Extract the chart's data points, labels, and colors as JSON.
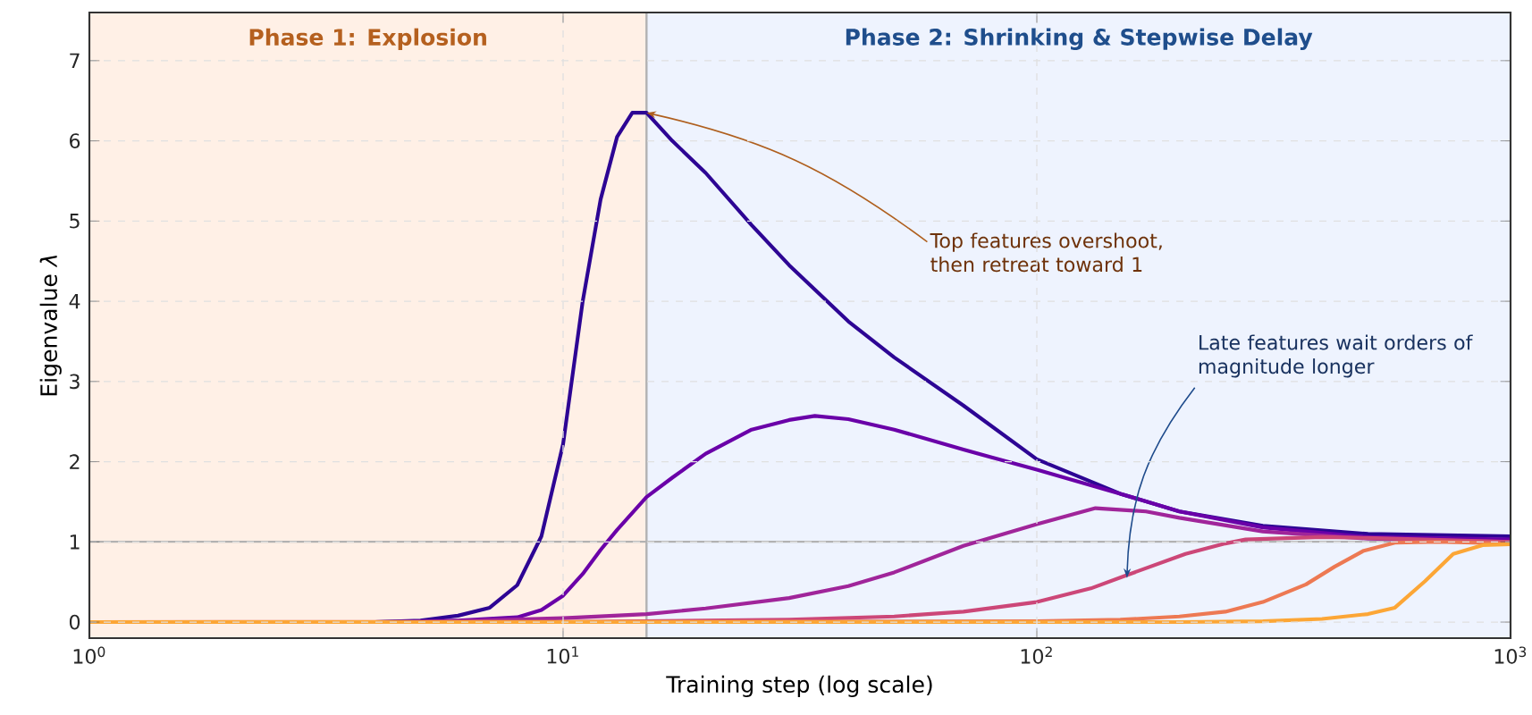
{
  "chart_data": {
    "type": "line",
    "xlabel": "Training step (log scale)",
    "ylabel": "Eigenvalue *λ*",
    "log": "x",
    "xlim": [
      1,
      1000
    ],
    "ylim": [
      -0.2,
      7.6
    ],
    "xticks": [
      {
        "value": 1,
        "label": "10$^{0}$"
      },
      {
        "value": 10,
        "label": "10$^{1}$"
      },
      {
        "value": 100,
        "label": "10$^{2}$"
      },
      {
        "value": 1000,
        "label": "10$^{3}$"
      }
    ],
    "yticks": [
      0,
      1,
      2,
      3,
      4,
      5,
      6,
      7
    ],
    "grid": true,
    "marker": "none",
    "line_style": "solid",
    "bands": [
      {
        "axis": "x",
        "from": 1,
        "to": 15,
        "label": "Phase 1: Explosion",
        "color": "#fff0e6"
      },
      {
        "axis": "x",
        "from": 15,
        "to": 1000,
        "label": "Phase 2: Shrinking & Stepwise Delay",
        "color": "#eef3fe"
      }
    ],
    "ref_lines": [
      {
        "axis": "x",
        "value": 15
      },
      {
        "axis": "y",
        "value": 1
      }
    ],
    "annotations": [
      {
        "text": "Top features overshoot, then retreat toward 1",
        "x": 15,
        "y": 6.35
      },
      {
        "text": "Late features wait orders of magnitude longer",
        "x": 155,
        "y": 0.55
      }
    ],
    "series": [
      {
        "color": "#2d0594",
        "x": [
          4,
          5,
          6,
          7,
          8,
          9,
          10,
          11,
          12,
          13,
          14,
          15,
          17,
          20,
          25,
          30,
          40,
          50,
          70,
          100,
          150,
          200,
          300,
          500,
          1000
        ],
        "values": [
          0,
          0.02,
          0.08,
          0.18,
          0.46,
          1.07,
          2.22,
          4.0,
          5.27,
          6.05,
          6.35,
          6.35,
          6.0,
          5.6,
          4.95,
          4.45,
          3.75,
          3.3,
          2.7,
          2.03,
          1.6,
          1.38,
          1.2,
          1.1,
          1.07
        ]
      },
      {
        "color": "#6a00a8",
        "x": [
          1,
          4,
          6,
          8,
          9,
          10,
          11,
          12,
          13,
          15,
          17,
          20,
          25,
          30,
          34,
          40,
          50,
          70,
          100,
          150,
          200,
          300,
          500,
          1000
        ],
        "values": [
          0,
          0,
          0.02,
          0.06,
          0.15,
          0.33,
          0.6,
          0.9,
          1.15,
          1.56,
          1.8,
          2.1,
          2.4,
          2.52,
          2.57,
          2.53,
          2.4,
          2.15,
          1.9,
          1.6,
          1.38,
          1.18,
          1.06,
          1.03
        ]
      },
      {
        "color": "#a0259a",
        "x": [
          1,
          5,
          10,
          15,
          20,
          30,
          40,
          50,
          70,
          100,
          133,
          170,
          200,
          300,
          500,
          1000
        ],
        "values": [
          0,
          0,
          0.05,
          0.1,
          0.17,
          0.3,
          0.45,
          0.62,
          0.95,
          1.22,
          1.42,
          1.38,
          1.3,
          1.13,
          1.04,
          1.0
        ]
      },
      {
        "color": "#cc4778",
        "x": [
          1,
          10,
          30,
          50,
          70,
          100,
          130,
          154,
          206,
          250,
          276,
          400,
          500,
          1000
        ],
        "values": [
          0,
          0,
          0.03,
          0.07,
          0.13,
          0.25,
          0.42,
          0.58,
          0.85,
          0.98,
          1.03,
          1.06,
          1.05,
          1.0
        ]
      },
      {
        "color": "#ed7953",
        "x": [
          1,
          100,
          150,
          200,
          250,
          300,
          370,
          425,
          490,
          570,
          700,
          1000
        ],
        "values": [
          0,
          0.01,
          0.03,
          0.07,
          0.13,
          0.25,
          0.47,
          0.69,
          0.89,
          0.99,
          1.0,
          0.98
        ]
      },
      {
        "color": "#fca636",
        "x": [
          1,
          200,
          300,
          400,
          500,
          570,
          660,
          757,
          873,
          1000
        ],
        "values": [
          0,
          0,
          0.01,
          0.04,
          0.1,
          0.18,
          0.51,
          0.85,
          0.96,
          0.97
        ]
      }
    ]
  }
}
